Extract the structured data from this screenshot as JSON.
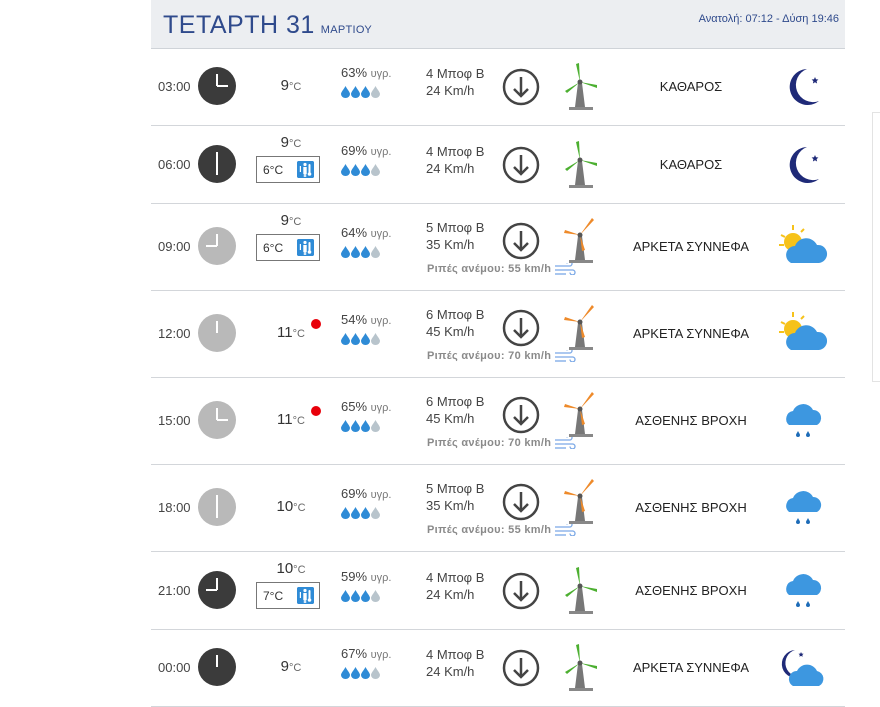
{
  "header": {
    "day_title": "ΤΕΤΑΡΤΗ 31",
    "month": "ΜΑΡΤΙΟΥ",
    "sun_times": "Ανατολή: 07:12  - Δύση 19:46"
  },
  "units": {
    "degree": "°C",
    "humidity_suffix": "υγρ."
  },
  "colors": {
    "accent": "#2f4a8c",
    "drop": "#2f8bd6",
    "heat_dot": "#e8000a",
    "turbine_calm": "#4caf30",
    "turbine_strong": "#ee8a2a"
  },
  "rows": [
    {
      "time": "03:00",
      "clock": "night",
      "temp": "9",
      "feels": "",
      "hot": false,
      "humidity": "63%",
      "drops": 3,
      "wind_bft": "4 Μποφ Β",
      "wind_kmh": "24 Km/h",
      "gust": "",
      "turbine": "calm",
      "condition": "ΚΑΘΑΡΟΣ",
      "weather_icon": "moon-icon"
    },
    {
      "time": "06:00",
      "clock": "night",
      "temp": "9",
      "feels": "6°C",
      "hot": false,
      "humidity": "69%",
      "drops": 3,
      "wind_bft": "4 Μποφ Β",
      "wind_kmh": "24 Km/h",
      "gust": "",
      "turbine": "calm",
      "condition": "ΚΑΘΑΡΟΣ",
      "weather_icon": "moon-icon"
    },
    {
      "time": "09:00",
      "clock": "day",
      "temp": "9",
      "feels": "6°C",
      "hot": false,
      "humidity": "64%",
      "drops": 3,
      "wind_bft": "5 Μποφ Β",
      "wind_kmh": "35 Km/h",
      "gust": "Ριπές ανέμου: 55 km/h",
      "turbine": "strong",
      "condition": "ΑΡΚΕΤΑ ΣΥΝΝΕΦΑ",
      "weather_icon": "sun-cloud-icon"
    },
    {
      "time": "12:00",
      "clock": "day",
      "temp": "11",
      "feels": "",
      "hot": true,
      "humidity": "54%",
      "drops": 3,
      "wind_bft": "6 Μποφ Β",
      "wind_kmh": "45 Km/h",
      "gust": "Ριπές ανέμου: 70 km/h",
      "turbine": "strong",
      "condition": "ΑΡΚΕΤΑ ΣΥΝΝΕΦΑ",
      "weather_icon": "sun-cloud-icon"
    },
    {
      "time": "15:00",
      "clock": "day",
      "temp": "11",
      "feels": "",
      "hot": true,
      "humidity": "65%",
      "drops": 3,
      "wind_bft": "6 Μποφ Β",
      "wind_kmh": "45 Km/h",
      "gust": "Ριπές ανέμου: 70 km/h",
      "turbine": "strong",
      "condition": "ΑΣΘΕΝΗΣ ΒΡΟΧΗ",
      "weather_icon": "rain-cloud-icon"
    },
    {
      "time": "18:00",
      "clock": "day",
      "temp": "10",
      "feels": "",
      "hot": false,
      "humidity": "69%",
      "drops": 3,
      "wind_bft": "5 Μποφ Β",
      "wind_kmh": "35 Km/h",
      "gust": "Ριπές ανέμου: 55 km/h",
      "turbine": "strong",
      "condition": "ΑΣΘΕΝΗΣ ΒΡΟΧΗ",
      "weather_icon": "rain-cloud-icon"
    },
    {
      "time": "21:00",
      "clock": "night",
      "temp": "10",
      "feels": "7°C",
      "hot": false,
      "humidity": "59%",
      "drops": 3,
      "wind_bft": "4 Μποφ Β",
      "wind_kmh": "24 Km/h",
      "gust": "",
      "turbine": "calm",
      "condition": "ΑΣΘΕΝΗΣ ΒΡΟΧΗ",
      "weather_icon": "rain-cloud-icon"
    },
    {
      "time": "00:00",
      "clock": "night",
      "temp": "9",
      "feels": "",
      "hot": false,
      "humidity": "67%",
      "drops": 3,
      "wind_bft": "4 Μποφ Β",
      "wind_kmh": "24 Km/h",
      "gust": "",
      "turbine": "calm",
      "condition": "ΑΡΚΕΤΑ ΣΥΝΝΕΦΑ",
      "weather_icon": "moon-cloud-icon"
    }
  ]
}
